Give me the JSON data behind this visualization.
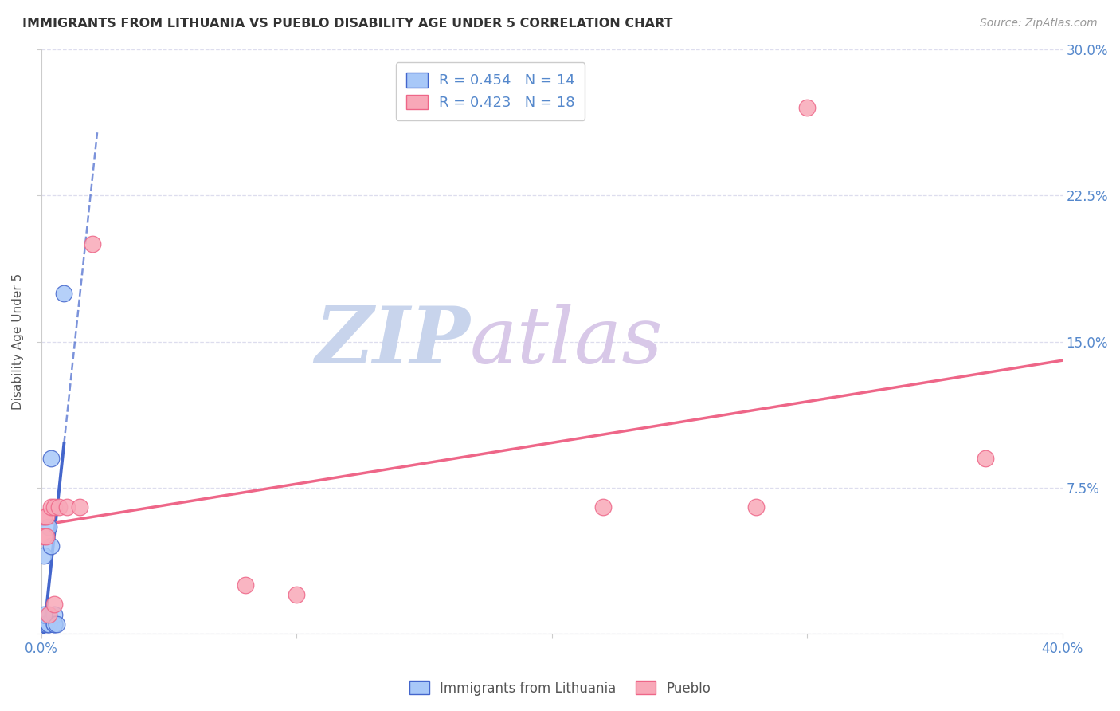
{
  "title": "IMMIGRANTS FROM LITHUANIA VS PUEBLO DISABILITY AGE UNDER 5 CORRELATION CHART",
  "source": "Source: ZipAtlas.com",
  "ylabel": "Disability Age Under 5",
  "r_lithuania": 0.454,
  "n_lithuania": 14,
  "r_pueblo": 0.423,
  "n_pueblo": 18,
  "xlim": [
    0.0,
    0.4
  ],
  "ylim": [
    0.0,
    0.3
  ],
  "xticks": [
    0.0,
    0.1,
    0.2,
    0.3,
    0.4
  ],
  "xtick_labels": [
    "0.0%",
    "",
    "",
    "",
    "40.0%"
  ],
  "yticks": [
    0.0,
    0.075,
    0.15,
    0.225,
    0.3
  ],
  "ytick_labels": [
    "",
    "7.5%",
    "15.0%",
    "22.5%",
    "30.0%"
  ],
  "color_lithuania": "#a8c8f8",
  "color_pueblo": "#f8a8b8",
  "line_color_lithuania": "#4466cc",
  "line_color_pueblo": "#ee6688",
  "tick_label_color": "#5588cc",
  "background_color": "#ffffff",
  "watermark_zip": "ZIP",
  "watermark_atlas": "atlas",
  "watermark_color_zip": "#c8d4ec",
  "watermark_color_atlas": "#d8c8e8",
  "legend_label_1": "R = 0.454   N = 14",
  "legend_label_2": "R = 0.423   N = 18",
  "bottom_legend_1": "Immigrants from Lithuania",
  "bottom_legend_2": "Pueblo",
  "lithuania_x": [
    0.001,
    0.001,
    0.002,
    0.003,
    0.003,
    0.003,
    0.004,
    0.004,
    0.005,
    0.005,
    0.005,
    0.006,
    0.009,
    0.001
  ],
  "lithuania_y": [
    0.005,
    0.04,
    0.005,
    0.055,
    0.005,
    0.005,
    0.045,
    0.09,
    0.005,
    0.01,
    0.005,
    0.005,
    0.175,
    0.01
  ],
  "pueblo_x": [
    0.001,
    0.001,
    0.002,
    0.002,
    0.003,
    0.004,
    0.005,
    0.005,
    0.007,
    0.01,
    0.015,
    0.02,
    0.08,
    0.1,
    0.22,
    0.28,
    0.3,
    0.37
  ],
  "pueblo_y": [
    0.05,
    0.06,
    0.05,
    0.06,
    0.01,
    0.065,
    0.015,
    0.065,
    0.065,
    0.065,
    0.065,
    0.2,
    0.025,
    0.02,
    0.065,
    0.065,
    0.27,
    0.09
  ]
}
